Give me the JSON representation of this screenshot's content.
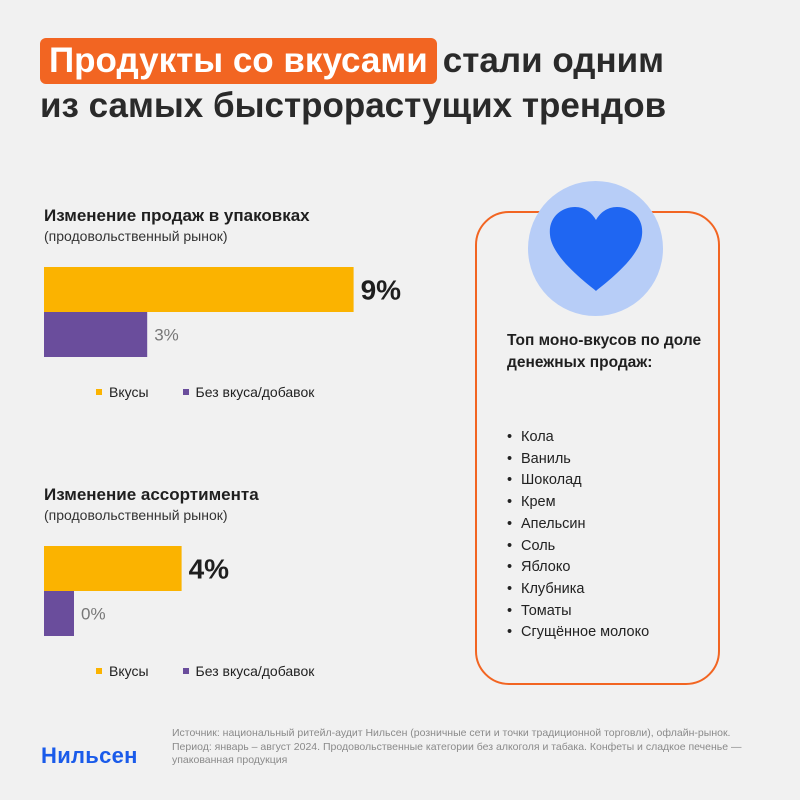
{
  "header": {
    "title_highlight": "Продукты со вкусами",
    "title_rest_line1": "стали одним",
    "title_line2": "из самых быстрорастущих трендов"
  },
  "colors": {
    "flavored": "#fbb300",
    "unflavored": "#6a4d9c",
    "accent": "#f26522",
    "brand": "#1a5bea",
    "heart": "#1f66f2"
  },
  "chart_data": [
    {
      "type": "bar",
      "orientation": "horizontal",
      "title": "Изменение продаж в упаковках",
      "subtitle": "(продовольственный рынок)",
      "series": [
        {
          "name": "Вкусы",
          "value": 9,
          "label": "9%"
        },
        {
          "name": "Без вкуса/добавок",
          "value": 3,
          "label": "3%"
        }
      ],
      "legend": "bottom"
    },
    {
      "type": "bar",
      "orientation": "horizontal",
      "title": "Изменение ассортимента",
      "subtitle": "(продовольственный рынок)",
      "series": [
        {
          "name": "Вкусы",
          "value": 4,
          "label": "4%"
        },
        {
          "name": "Без вкуса/добавок",
          "value": 0,
          "label": "0%"
        }
      ],
      "legend": "bottom"
    }
  ],
  "card": {
    "icon": "heart-icon",
    "title": "Топ моно-вкусов по доле денежных продаж:",
    "items": [
      "Кола",
      "Ваниль",
      "Шоколад",
      "Крем",
      "Апельсин",
      "Соль",
      "Яблоко",
      "Клубника",
      "Томаты",
      "Сгущённое молоко"
    ]
  },
  "footer": {
    "logo": "Нильсен",
    "source": "Источник: национальный ритейл-аудит Нильсен (розничные сети и точки традиционной торговли), офлайн-рынок. Период: январь – август 2024. Продовольственные категории без алкоголя и табака. Конфеты и сладкое печенье — упакованная продукция"
  }
}
